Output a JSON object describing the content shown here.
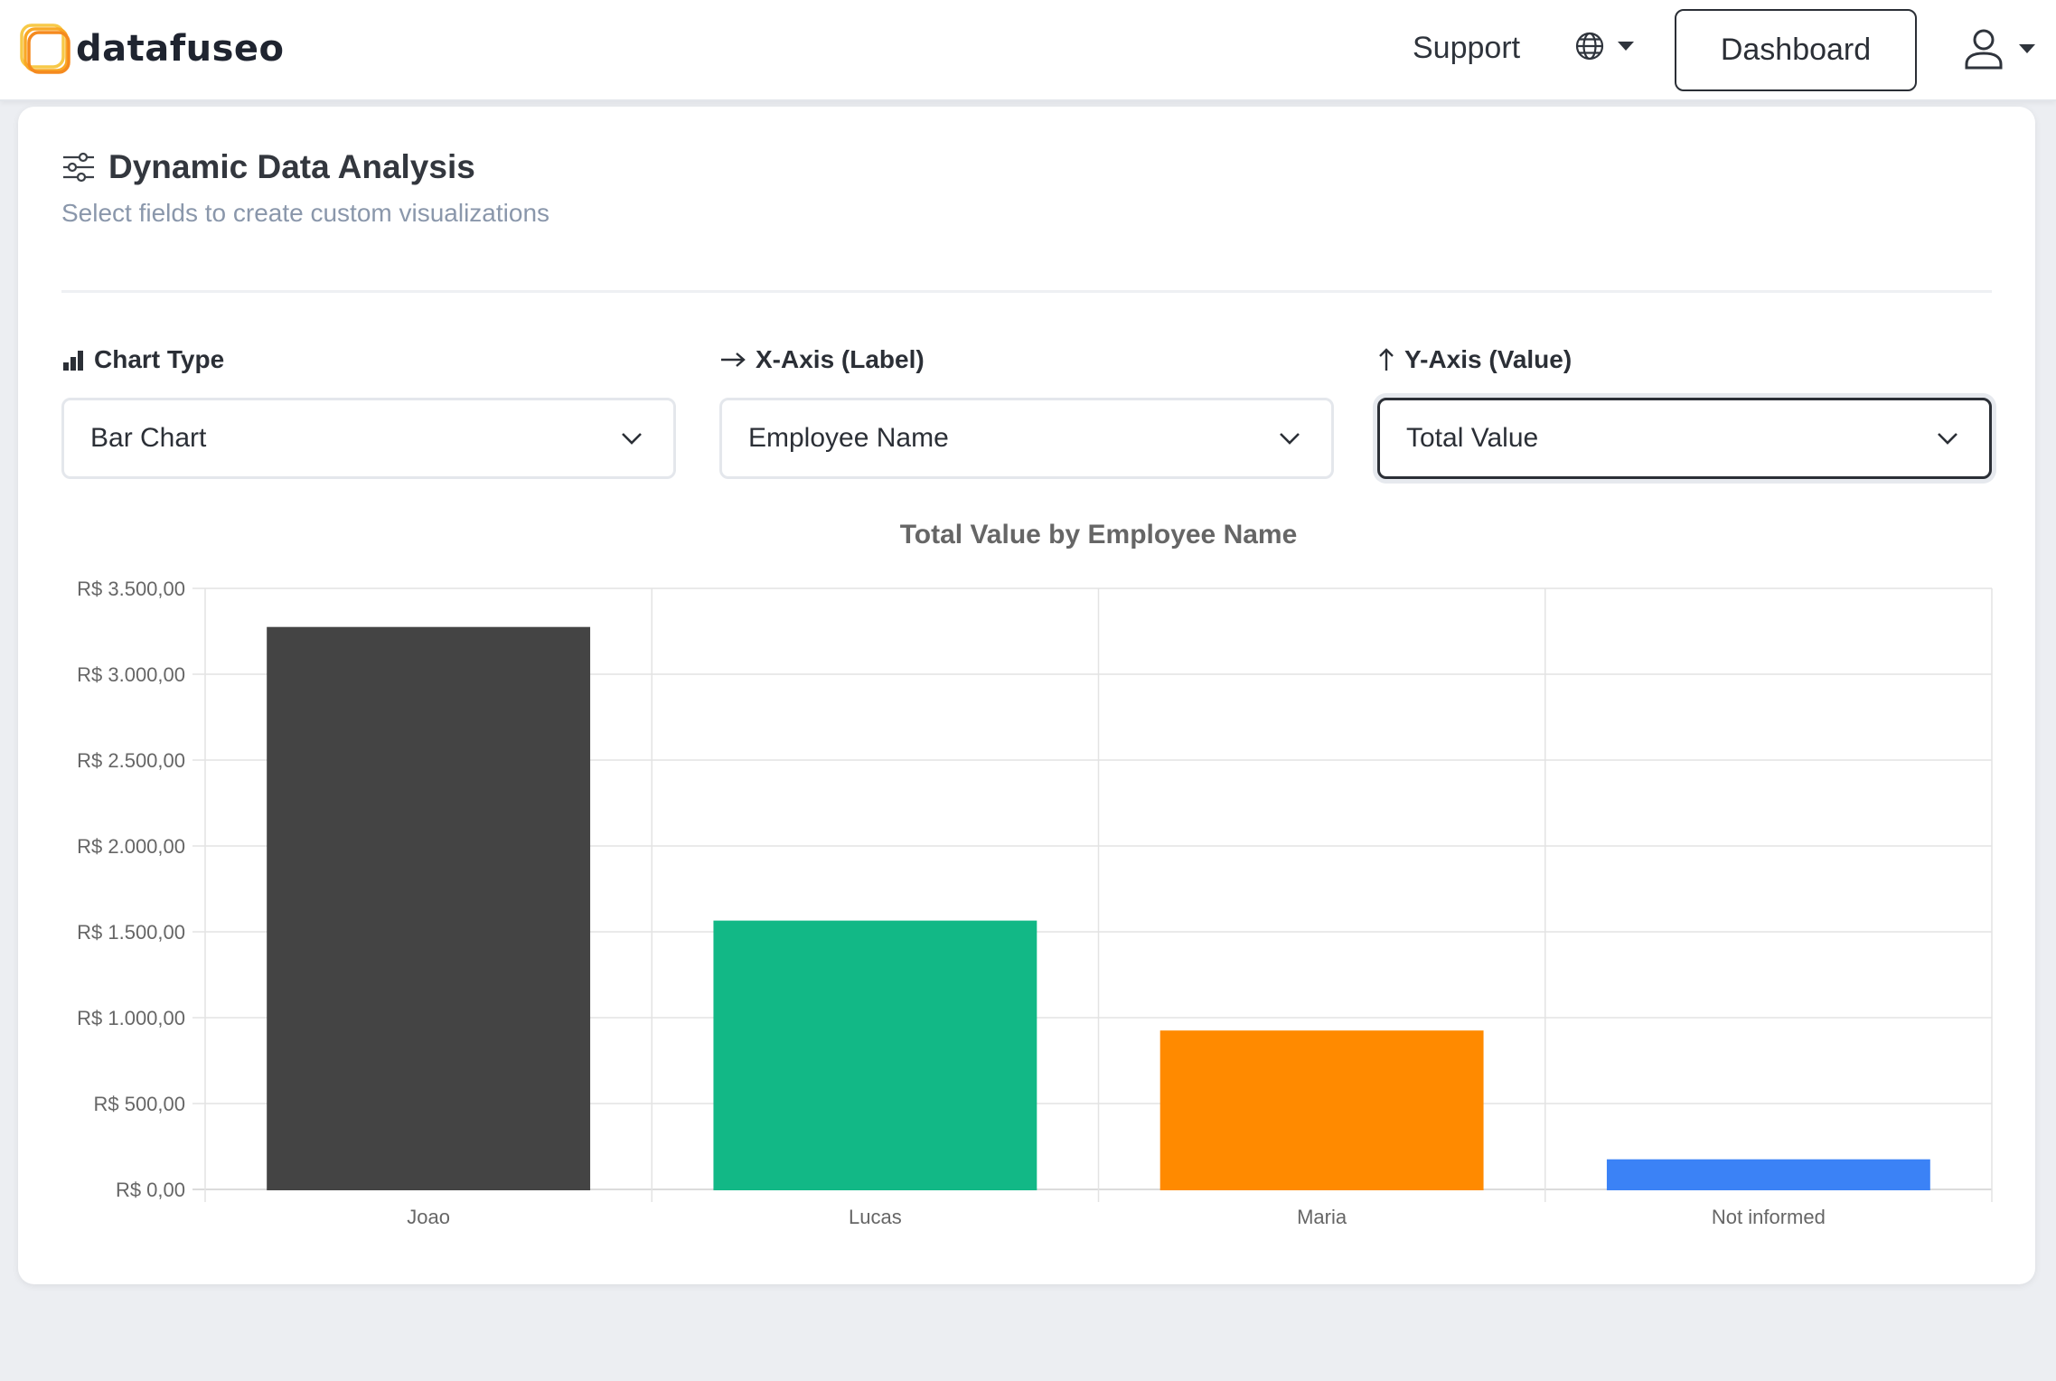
{
  "header": {
    "brand": "datafuseo",
    "support_label": "Support",
    "dashboard_label": "Dashboard"
  },
  "panel": {
    "title": "Dynamic Data Analysis",
    "subtitle": "Select fields to create custom visualizations"
  },
  "controls": {
    "chart_type": {
      "label": "Chart Type",
      "value": "Bar Chart"
    },
    "x_axis": {
      "label": "X-Axis (Label)",
      "value": "Employee Name"
    },
    "y_axis": {
      "label": "Y-Axis (Value)",
      "value": "Total Value"
    }
  },
  "colors": {
    "joao": "#444444",
    "lucas": "#12b886",
    "maria": "#ff8a00",
    "not_informed": "#3b82f6"
  },
  "chart_data": {
    "type": "bar",
    "title": "Total Value by Employee Name",
    "categories": [
      "Joao",
      "Lucas",
      "Maria",
      "Not informed"
    ],
    "values": [
      3270,
      1560,
      920,
      170
    ],
    "bar_colors": [
      "#444444",
      "#12b886",
      "#ff8a00",
      "#3b82f6"
    ],
    "ylim": [
      0,
      3500
    ],
    "yticks": [
      0,
      500,
      1000,
      1500,
      2000,
      2500,
      3000,
      3500
    ],
    "ytick_labels": [
      "R$ 0,00",
      "R$ 500,00",
      "R$ 1.000,00",
      "R$ 1.500,00",
      "R$ 2.000,00",
      "R$ 2.500,00",
      "R$ 3.000,00",
      "R$ 3.500,00"
    ],
    "grid": true,
    "legend": "none"
  }
}
